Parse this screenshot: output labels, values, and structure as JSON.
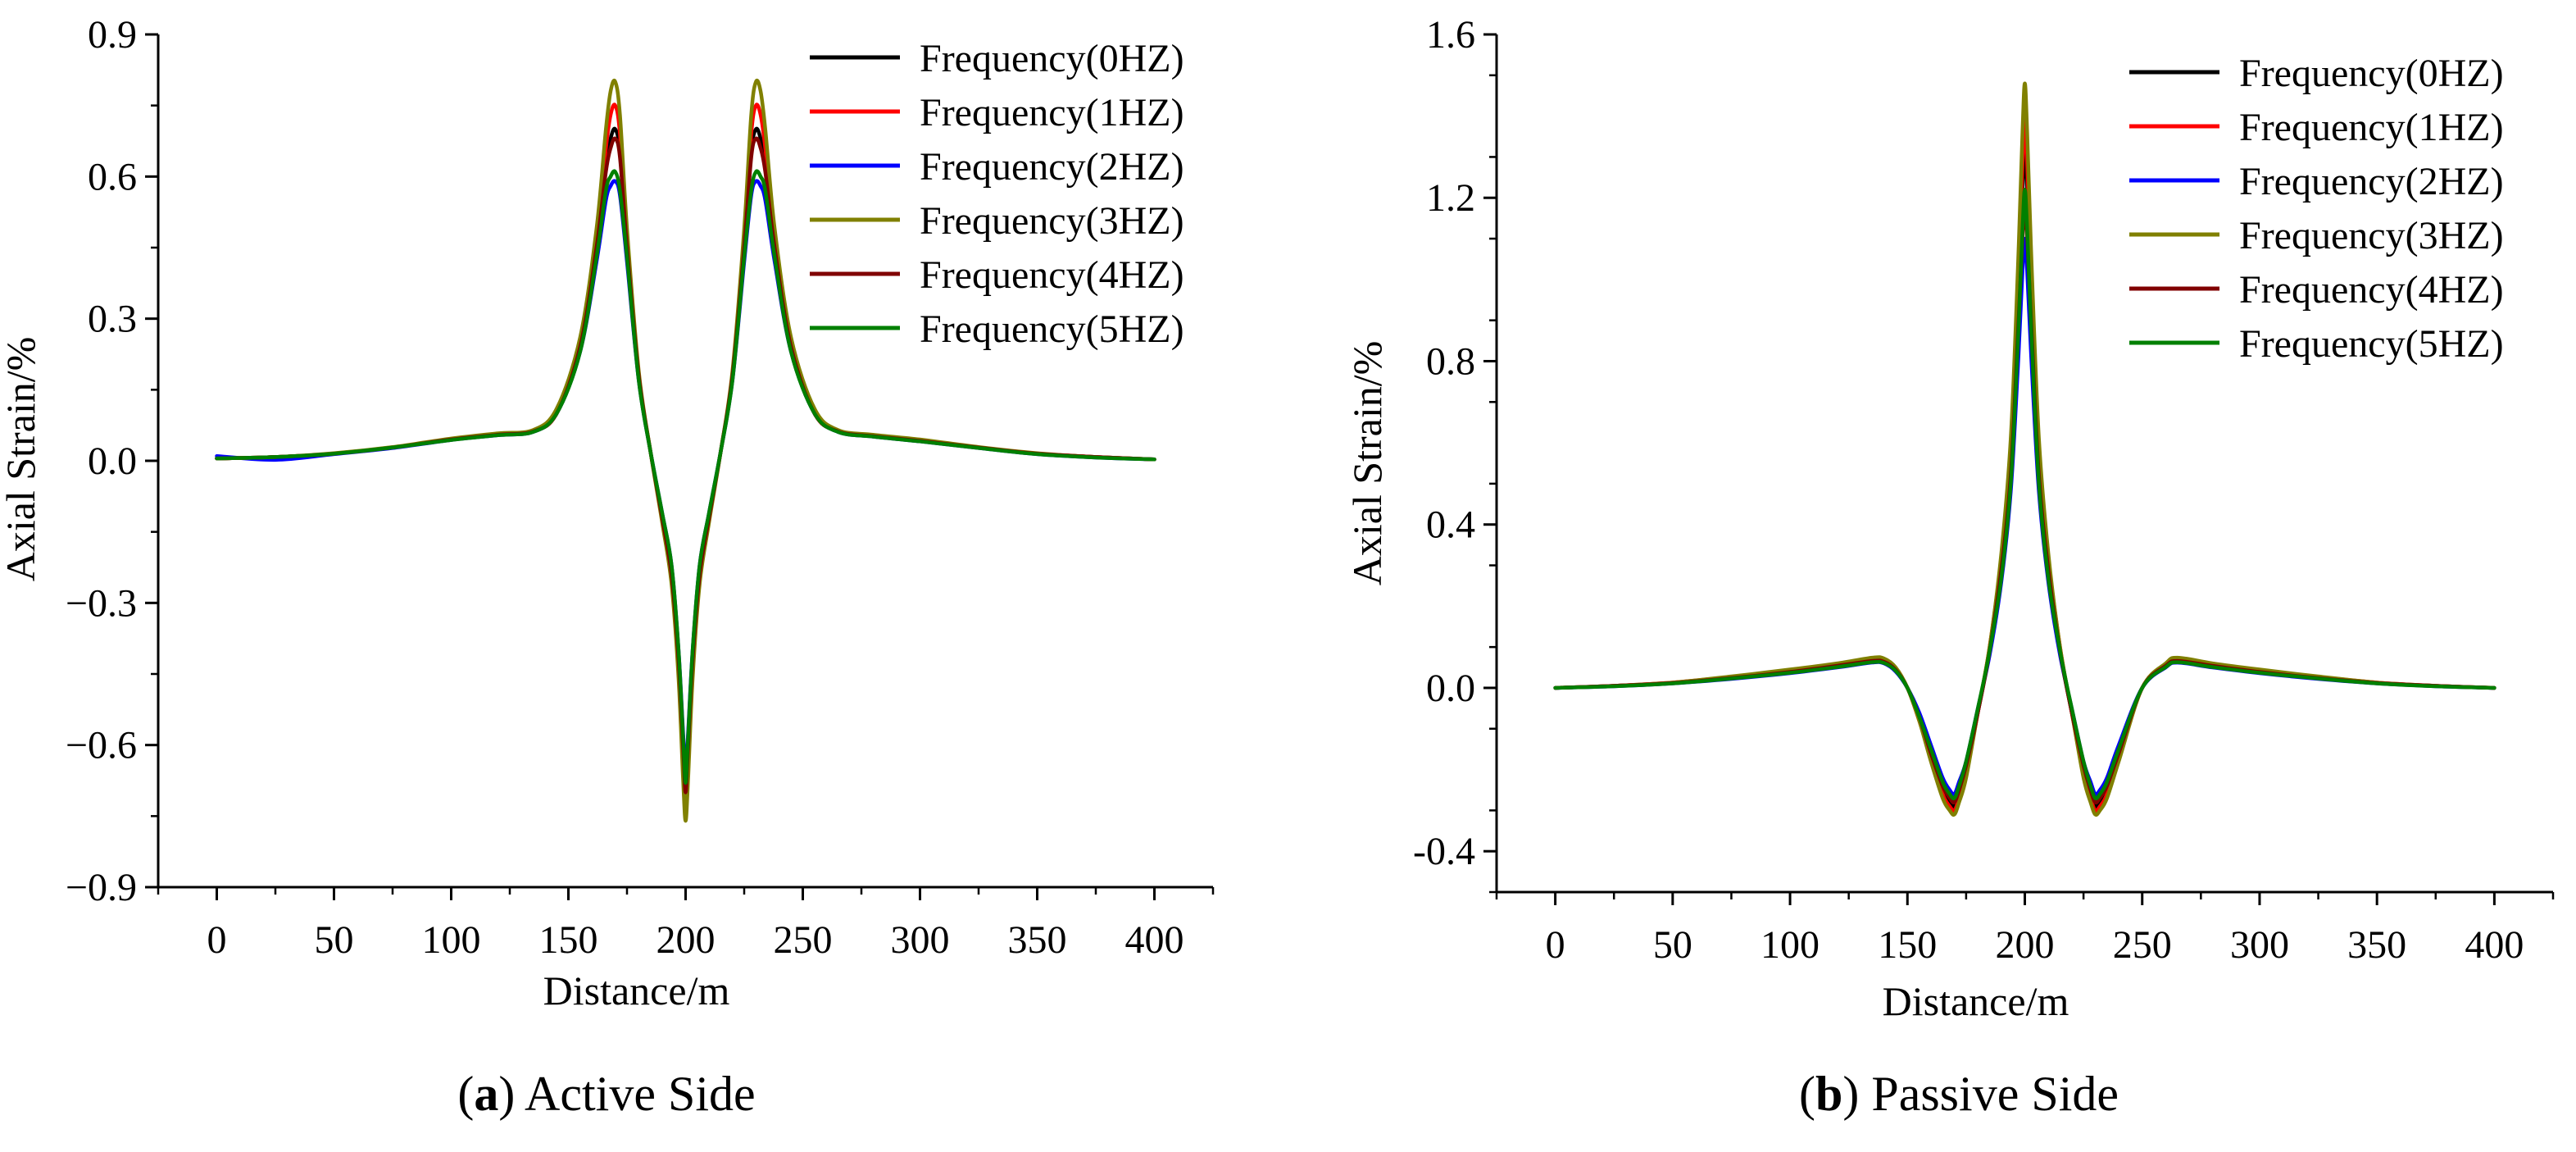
{
  "colors": {
    "0HZ": "#000000",
    "1HZ": "#ff0000",
    "2HZ": "#0000ff",
    "3HZ": "#808000",
    "4HZ": "#800000",
    "5HZ": "#008000"
  },
  "captions": [
    {
      "letter": "a",
      "open": "(",
      "close": ")",
      "text": " Active Side"
    },
    {
      "letter": "b",
      "open": "(",
      "close": ")",
      "text": " Passive Side"
    }
  ],
  "chart_data": [
    {
      "type": "line",
      "title": "Active Side",
      "xlabel": "Distance/m",
      "ylabel": "Axial Strain/%",
      "xlim": [
        -25,
        425
      ],
      "ylim": [
        -0.9,
        0.9
      ],
      "xticks": [
        0,
        50,
        100,
        150,
        200,
        250,
        300,
        350,
        400
      ],
      "xticklabels": [
        "0",
        "50",
        "100",
        "150",
        "200",
        "250",
        "300",
        "350",
        "400"
      ],
      "yticks": [
        -0.9,
        -0.6,
        -0.3,
        0.0,
        0.3,
        0.6,
        0.9
      ],
      "yticklabels": [
        "−0.9",
        "−0.6",
        "−0.3",
        "0.0",
        "0.3",
        "0.6",
        "0.9"
      ],
      "legend_position": "top-right",
      "x": [
        0,
        25,
        50,
        75,
        100,
        120,
        135,
        145,
        155,
        162,
        166,
        168,
        170,
        172,
        175,
        180,
        185,
        190,
        194,
        197,
        199,
        200,
        201,
        203,
        206,
        210,
        215,
        220,
        225,
        228,
        230,
        232,
        234,
        238,
        245,
        255,
        265,
        280,
        300,
        325,
        350,
        375,
        400
      ],
      "series": [
        {
          "name": "Frequency(0HZ)",
          "color_key": "0HZ",
          "values": [
            0.005,
            0.008,
            0.015,
            0.028,
            0.045,
            0.055,
            0.062,
            0.1,
            0.24,
            0.45,
            0.62,
            0.68,
            0.7,
            0.65,
            0.45,
            0.18,
            0.02,
            -0.12,
            -0.24,
            -0.42,
            -0.62,
            -0.72,
            -0.62,
            -0.42,
            -0.24,
            -0.12,
            0.02,
            0.18,
            0.45,
            0.65,
            0.7,
            0.68,
            0.62,
            0.45,
            0.24,
            0.1,
            0.062,
            0.052,
            0.042,
            0.028,
            0.015,
            0.008,
            0.003
          ]
        },
        {
          "name": "Frequency(1HZ)",
          "color_key": "1HZ",
          "values": [
            0.005,
            0.008,
            0.015,
            0.028,
            0.045,
            0.056,
            0.063,
            0.1,
            0.25,
            0.47,
            0.66,
            0.73,
            0.75,
            0.69,
            0.47,
            0.18,
            0.02,
            -0.12,
            -0.25,
            -0.44,
            -0.65,
            -0.75,
            -0.65,
            -0.44,
            -0.25,
            -0.12,
            0.02,
            0.18,
            0.47,
            0.69,
            0.75,
            0.73,
            0.66,
            0.47,
            0.25,
            0.1,
            0.063,
            0.053,
            0.043,
            0.028,
            0.015,
            0.008,
            0.003
          ]
        },
        {
          "name": "Frequency(2HZ)",
          "color_key": "2HZ",
          "values": [
            0.01,
            0.002,
            0.014,
            0.027,
            0.044,
            0.054,
            0.061,
            0.1,
            0.23,
            0.42,
            0.55,
            0.58,
            0.59,
            0.56,
            0.42,
            0.17,
            0.02,
            -0.11,
            -0.22,
            -0.4,
            -0.58,
            -0.66,
            -0.58,
            -0.4,
            -0.22,
            -0.11,
            0.02,
            0.17,
            0.42,
            0.56,
            0.59,
            0.58,
            0.55,
            0.42,
            0.23,
            0.1,
            0.061,
            0.051,
            0.041,
            0.027,
            0.014,
            0.007,
            0.003
          ]
        },
        {
          "name": "Frequency(3HZ)",
          "color_key": "3HZ",
          "values": [
            0.005,
            0.008,
            0.016,
            0.029,
            0.047,
            0.058,
            0.065,
            0.11,
            0.26,
            0.49,
            0.7,
            0.78,
            0.8,
            0.73,
            0.49,
            0.19,
            0.02,
            -0.13,
            -0.26,
            -0.46,
            -0.68,
            -0.76,
            -0.68,
            -0.46,
            -0.26,
            -0.13,
            0.02,
            0.19,
            0.49,
            0.73,
            0.8,
            0.78,
            0.7,
            0.49,
            0.26,
            0.11,
            0.065,
            0.055,
            0.045,
            0.029,
            0.016,
            0.008,
            0.003
          ]
        },
        {
          "name": "Frequency(4HZ)",
          "color_key": "4HZ",
          "values": [
            0.005,
            0.008,
            0.015,
            0.028,
            0.045,
            0.055,
            0.062,
            0.1,
            0.24,
            0.45,
            0.61,
            0.66,
            0.68,
            0.64,
            0.45,
            0.18,
            0.02,
            -0.12,
            -0.24,
            -0.42,
            -0.61,
            -0.7,
            -0.61,
            -0.42,
            -0.24,
            -0.12,
            0.02,
            0.18,
            0.45,
            0.64,
            0.68,
            0.66,
            0.61,
            0.45,
            0.24,
            0.1,
            0.062,
            0.052,
            0.042,
            0.028,
            0.015,
            0.008,
            0.003
          ]
        },
        {
          "name": "Frequency(5HZ)",
          "color_key": "5HZ",
          "values": [
            0.005,
            0.008,
            0.015,
            0.028,
            0.044,
            0.054,
            0.061,
            0.1,
            0.23,
            0.43,
            0.57,
            0.6,
            0.61,
            0.57,
            0.43,
            0.17,
            0.02,
            -0.11,
            -0.22,
            -0.4,
            -0.59,
            -0.68,
            -0.59,
            -0.4,
            -0.22,
            -0.11,
            0.02,
            0.17,
            0.43,
            0.57,
            0.61,
            0.6,
            0.57,
            0.43,
            0.23,
            0.1,
            0.061,
            0.051,
            0.041,
            0.027,
            0.014,
            0.007,
            0.003
          ]
        }
      ]
    },
    {
      "type": "line",
      "title": "Passive Side",
      "xlabel": "Distance/m",
      "ylabel": "Axial Strain/%",
      "xlim": [
        -25,
        425
      ],
      "ylim": [
        -0.5,
        1.6
      ],
      "xticks": [
        0,
        50,
        100,
        150,
        200,
        250,
        300,
        350,
        400
      ],
      "xticklabels": [
        "0",
        "50",
        "100",
        "150",
        "200",
        "250",
        "300",
        "350",
        "400"
      ],
      "yticks": [
        -0.4,
        0.0,
        0.4,
        0.8,
        1.2,
        1.6
      ],
      "yticklabels": [
        "-0.4",
        "0.0",
        "0.4",
        "0.8",
        "1.2",
        "1.6"
      ],
      "legend_position": "top-right",
      "x": [
        0,
        25,
        50,
        75,
        100,
        120,
        135,
        140,
        145,
        150,
        155,
        160,
        165,
        168,
        170,
        172,
        175,
        180,
        185,
        190,
        194,
        197,
        199,
        200,
        201,
        203,
        206,
        210,
        215,
        220,
        225,
        228,
        230,
        232,
        235,
        240,
        250,
        260,
        265,
        280,
        300,
        325,
        350,
        375,
        400
      ],
      "series": [
        {
          "name": "Frequency(0HZ)",
          "color_key": "0HZ",
          "values": [
            0.0,
            0.005,
            0.012,
            0.025,
            0.04,
            0.055,
            0.068,
            0.066,
            0.045,
            0.0,
            -0.07,
            -0.16,
            -0.25,
            -0.28,
            -0.29,
            -0.26,
            -0.2,
            -0.06,
            0.09,
            0.3,
            0.55,
            0.92,
            1.22,
            1.32,
            1.22,
            0.92,
            0.55,
            0.3,
            0.09,
            -0.06,
            -0.2,
            -0.26,
            -0.29,
            -0.28,
            -0.25,
            -0.16,
            0.0,
            0.055,
            0.068,
            0.055,
            0.04,
            0.025,
            0.012,
            0.005,
            0.0
          ]
        },
        {
          "name": "Frequency(1HZ)",
          "color_key": "1HZ",
          "values": [
            0.0,
            0.005,
            0.013,
            0.027,
            0.043,
            0.058,
            0.071,
            0.069,
            0.047,
            0.0,
            -0.08,
            -0.17,
            -0.26,
            -0.29,
            -0.3,
            -0.27,
            -0.21,
            -0.06,
            0.1,
            0.32,
            0.58,
            0.97,
            1.28,
            1.39,
            1.28,
            0.97,
            0.58,
            0.32,
            0.1,
            -0.06,
            -0.21,
            -0.27,
            -0.3,
            -0.29,
            -0.26,
            -0.17,
            0.0,
            0.058,
            0.071,
            0.058,
            0.043,
            0.027,
            0.013,
            0.005,
            0.0
          ]
        },
        {
          "name": "Frequency(2HZ)",
          "color_key": "2HZ",
          "values": [
            0.0,
            0.004,
            0.011,
            0.022,
            0.036,
            0.05,
            0.062,
            0.06,
            0.04,
            0.0,
            -0.06,
            -0.14,
            -0.22,
            -0.25,
            -0.26,
            -0.23,
            -0.18,
            -0.05,
            0.08,
            0.26,
            0.48,
            0.78,
            1.02,
            1.1,
            1.02,
            0.78,
            0.48,
            0.26,
            0.08,
            -0.05,
            -0.18,
            -0.23,
            -0.26,
            -0.25,
            -0.22,
            -0.14,
            0.0,
            0.05,
            0.062,
            0.05,
            0.036,
            0.022,
            0.011,
            0.004,
            0.0
          ]
        },
        {
          "name": "Frequency(3HZ)",
          "color_key": "3HZ",
          "values": [
            0.0,
            0.005,
            0.013,
            0.028,
            0.045,
            0.06,
            0.074,
            0.072,
            0.05,
            0.0,
            -0.08,
            -0.18,
            -0.27,
            -0.3,
            -0.31,
            -0.28,
            -0.22,
            -0.06,
            0.1,
            0.33,
            0.61,
            1.02,
            1.36,
            1.48,
            1.36,
            1.02,
            0.61,
            0.33,
            0.1,
            -0.06,
            -0.22,
            -0.28,
            -0.31,
            -0.3,
            -0.27,
            -0.18,
            0.0,
            0.06,
            0.074,
            0.06,
            0.045,
            0.028,
            0.013,
            0.005,
            0.0
          ]
        },
        {
          "name": "Frequency(4HZ)",
          "color_key": "4HZ",
          "values": [
            0.0,
            0.005,
            0.012,
            0.024,
            0.039,
            0.054,
            0.066,
            0.064,
            0.044,
            0.0,
            -0.07,
            -0.16,
            -0.24,
            -0.27,
            -0.28,
            -0.25,
            -0.19,
            -0.06,
            0.09,
            0.29,
            0.52,
            0.86,
            1.1,
            1.18,
            1.1,
            0.86,
            0.52,
            0.29,
            0.09,
            -0.06,
            -0.19,
            -0.25,
            -0.28,
            -0.27,
            -0.24,
            -0.16,
            0.0,
            0.054,
            0.066,
            0.054,
            0.039,
            0.024,
            0.012,
            0.005,
            0.0
          ]
        },
        {
          "name": "Frequency(5HZ)",
          "color_key": "5HZ",
          "values": [
            0.0,
            0.004,
            0.011,
            0.023,
            0.037,
            0.051,
            0.063,
            0.061,
            0.042,
            0.0,
            -0.07,
            -0.15,
            -0.23,
            -0.26,
            -0.27,
            -0.24,
            -0.18,
            -0.05,
            0.09,
            0.27,
            0.5,
            0.84,
            1.12,
            1.22,
            1.12,
            0.84,
            0.5,
            0.27,
            0.09,
            -0.05,
            -0.18,
            -0.24,
            -0.27,
            -0.26,
            -0.23,
            -0.15,
            0.0,
            0.051,
            0.063,
            0.051,
            0.037,
            0.023,
            0.011,
            0.004,
            0.0
          ]
        }
      ]
    }
  ]
}
